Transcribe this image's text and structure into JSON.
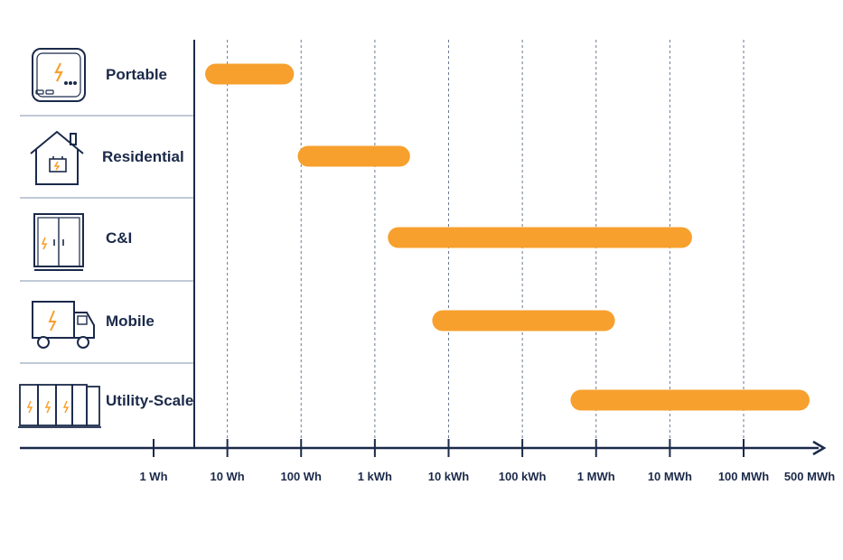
{
  "chart_data": {
    "type": "bar",
    "orientation": "horizontal-range",
    "title": "",
    "xlabel": "",
    "ylabel": "",
    "x_scale": "log",
    "x_unit": "Wh",
    "grid": true,
    "colors": {
      "bar": "#F7A02E",
      "axis": "#1B2A4A",
      "divider": "#9AA9BE",
      "grid": "#6B7A90"
    },
    "ticks": [
      {
        "label": "1 Wh",
        "value": 1
      },
      {
        "label": "10 Wh",
        "value": 10
      },
      {
        "label": "100 Wh",
        "value": 100
      },
      {
        "label": "1 kWh",
        "value": 1000
      },
      {
        "label": "10 kWh",
        "value": 10000
      },
      {
        "label": "100 kWh",
        "value": 100000
      },
      {
        "label": "1 MWh",
        "value": 1000000
      },
      {
        "label": "10 MWh",
        "value": 10000000
      },
      {
        "label": "100 MWh",
        "value": 100000000
      },
      {
        "label": "500 MWh",
        "value": 500000000
      }
    ],
    "categories": [
      {
        "label": "Portable",
        "icon": "power-bank-icon",
        "min": 5,
        "max": 80
      },
      {
        "label": "Residential",
        "icon": "house-battery-icon",
        "min": 90,
        "max": 3000
      },
      {
        "label": "C&I",
        "icon": "battery-cabinet-icon",
        "min": 1500,
        "max": 20000000
      },
      {
        "label": "Mobile",
        "icon": "battery-truck-icon",
        "min": 6000,
        "max": 1800000
      },
      {
        "label": "Utility-Scale",
        "icon": "container-array-icon",
        "min": 450000,
        "max": 500000000
      }
    ]
  }
}
